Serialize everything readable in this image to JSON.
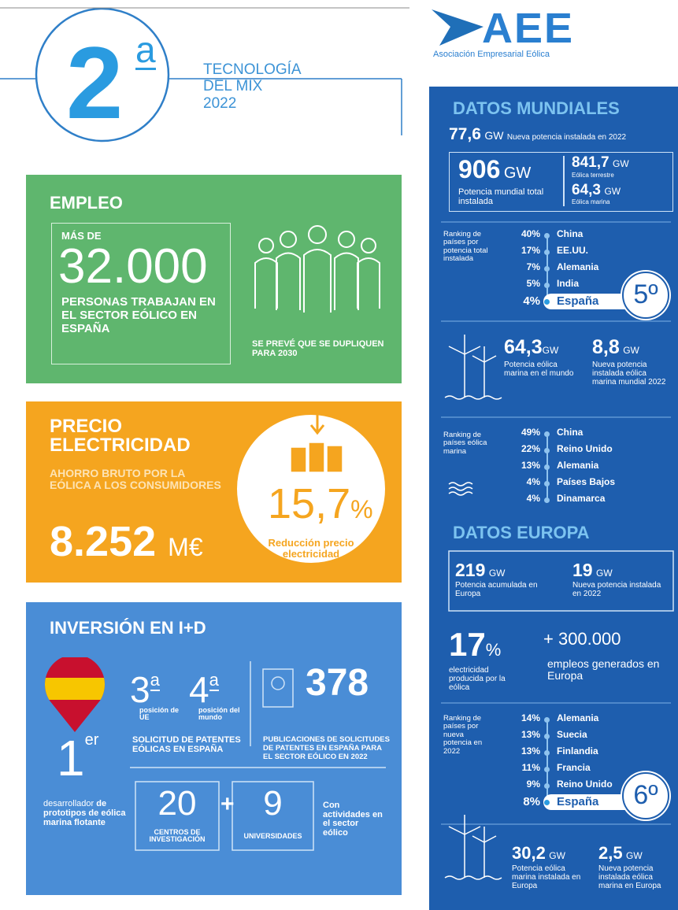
{
  "header": {
    "number": "2",
    "ordinal": "a",
    "subtitle": [
      "TECNOLOGÍA",
      "DEL MIX",
      "2022"
    ]
  },
  "logo": {
    "name": "AEE",
    "subtitle": "Asociación Empresarial Eólica"
  },
  "empleo": {
    "title": "EMPLEO",
    "prefix": "MÁS DE",
    "number": "32.000",
    "text": "PERSONAS TRABAJAN EN EL SECTOR EÓLICO EN ESPAÑA",
    "note": "SE PREVÉ QUE SE DUPLIQUEN PARA 2030"
  },
  "precio": {
    "title": [
      "PRECIO",
      "ELECTRICIDAD"
    ],
    "text": "AHORRO BRUTO POR LA EÓLICA A LOS CONSUMIDORES",
    "value": "8.252",
    "unit": "M€",
    "percent": "15,7",
    "percent_unit": "%",
    "caption": "Reducción precio electricidad"
  },
  "inversion": {
    "title": "INVERSIÓN EN I+D",
    "positions": [
      {
        "value": "3",
        "ordinal": "a",
        "label": "posición de UE"
      },
      {
        "value": "4",
        "ordinal": "a",
        "label": "posición del mundo"
      }
    ],
    "solicitud": "SOLICITUD DE PATENTES EÓLICAS EN ESPAÑA",
    "patents": "378",
    "patents_text": "PUBLICACIONES DE SOLICITUDES DE PATENTES EN ESPAÑA PARA EL SECTOR EÓLICO EN 2022",
    "first": "1",
    "first_ordinal": "er",
    "first_text": "desarrollador",
    "first_text_bold": "de prototipos de eólica marina flotante",
    "centros": "20",
    "centros_label": "CENTROS DE INVESTIGACIÓN",
    "plus": "+",
    "universidades": "9",
    "universidades_label": "UNIVERSIDADES",
    "activities": "Con actividades en el sector eólico"
  },
  "mundiales": {
    "title": "DATOS MUNDIALES",
    "new": {
      "value": "77,6",
      "unit": "GW",
      "label": "Nueva potencia instalada en 2022"
    },
    "total": {
      "value": "906",
      "unit": "GW",
      "label": "Potencia mundial total instalada"
    },
    "terrestre": {
      "value": "841,7",
      "unit": "GW",
      "label": "Eólica terrestre"
    },
    "marina": {
      "value": "64,3",
      "unit": "GW",
      "label": "Eólica marina"
    },
    "ranking": {
      "label": "Ranking de países por potencia total instalada",
      "rank": "5º",
      "items": [
        {
          "pct": "40%",
          "country": "China"
        },
        {
          "pct": "17%",
          "country": "EE.UU."
        },
        {
          "pct": "7%",
          "country": "Alemania"
        },
        {
          "pct": "5%",
          "country": "India"
        },
        {
          "pct": "4%",
          "country": "España"
        }
      ]
    },
    "offshore": {
      "value": "64,3",
      "unit": "GW",
      "label": "Potencia eólica marina en el mundo"
    },
    "offshore_new": {
      "value": "8,8",
      "unit": "GW",
      "label": "Nueva potencia instalada eólica marina mundial 2022"
    },
    "ranking_marina": {
      "label": "Ranking de países eólica marina",
      "items": [
        {
          "pct": "49%",
          "country": "China"
        },
        {
          "pct": "22%",
          "country": "Reino Unido"
        },
        {
          "pct": "13%",
          "country": "Alemania"
        },
        {
          "pct": "4%",
          "country": "Países Bajos"
        },
        {
          "pct": "4%",
          "country": "Dinamarca"
        }
      ]
    }
  },
  "europa": {
    "title": "DATOS EUROPA",
    "accumulated": {
      "value": "219",
      "unit": "GW",
      "label": "Potencia acumulada en Europa"
    },
    "new": {
      "value": "19",
      "unit": "GW",
      "label": "Nueva potencia instalada en 2022"
    },
    "share": {
      "value": "17",
      "unit": "%",
      "label": "electricidad producida por la eólica"
    },
    "jobs": {
      "value": "+ 300.000",
      "label": "empleos generados en Europa"
    },
    "ranking": {
      "label": "Ranking de países por nueva potencia en 2022",
      "rank": "6º",
      "items": [
        {
          "pct": "14%",
          "country": "Alemania"
        },
        {
          "pct": "13%",
          "country": "Suecia"
        },
        {
          "pct": "13%",
          "country": "Finlandia"
        },
        {
          "pct": "11%",
          "country": "Francia"
        },
        {
          "pct": "9%",
          "country": "Reino Unido"
        },
        {
          "pct": "8%",
          "country": "España"
        }
      ]
    },
    "offshore": {
      "value": "30,2",
      "unit": "GW",
      "label": "Potencia eólica marina instalada en Europa"
    },
    "offshore_new": {
      "value": "2,5",
      "unit": "GW",
      "label": "Nueva potencia instalada eólica marina en Europa"
    }
  }
}
